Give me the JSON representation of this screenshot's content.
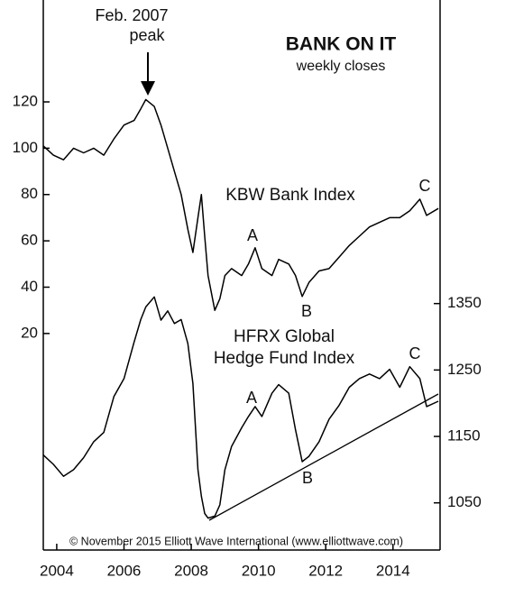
{
  "chart_data": {
    "type": "line",
    "title": "BANK ON IT",
    "subtitle": "weekly closes",
    "annotations": [
      "Feb. 2007",
      "peak",
      "A",
      "B",
      "C",
      "A",
      "B",
      "C",
      "© November 2015 Elliott Wave International (www.elliottwave.com)"
    ],
    "x": [
      2004.1,
      2004.4,
      2004.7,
      2005.0,
      2005.3,
      2005.6,
      2005.9,
      2006.2,
      2006.5,
      2006.8,
      2007.0,
      2007.15,
      2007.4,
      2007.6,
      2007.8,
      2008.0,
      2008.2,
      2008.4,
      2008.55,
      2008.7,
      2008.8,
      2008.9,
      2009.0,
      2009.2,
      2009.35,
      2009.5,
      2009.7,
      2010.0,
      2010.2,
      2010.4,
      2010.6,
      2010.9,
      2011.1,
      2011.4,
      2011.6,
      2011.8,
      2012.0,
      2012.3,
      2012.6,
      2012.9,
      2013.2,
      2013.5,
      2013.8,
      2014.1,
      2014.4,
      2014.7,
      2015.0,
      2015.3,
      2015.5,
      2015.85
    ],
    "series": [
      {
        "name": "KBW Bank Index",
        "color": "#000000",
        "values": [
          101,
          97,
          95,
          100,
          98,
          100,
          97,
          104,
          110,
          112,
          117,
          121,
          118,
          110,
          100,
          90,
          80,
          65,
          55,
          70,
          80,
          62,
          45,
          30,
          35,
          45,
          48,
          45,
          50,
          57,
          48,
          45,
          52,
          50,
          45,
          36,
          42,
          47,
          48,
          53,
          58,
          62,
          66,
          68,
          70,
          70,
          73,
          78,
          71,
          74
        ]
      },
      {
        "name": "HFRX Global Hedge Fund Index",
        "color": "#000000",
        "axis": "y2",
        "values": [
          1122,
          1108,
          1090,
          1100,
          1118,
          1142,
          1156,
          1210,
          1237,
          1292,
          1326,
          1345,
          1360,
          1325,
          1339,
          1320,
          1326,
          1290,
          1230,
          1100,
          1060,
          1034,
          1027,
          1030,
          1047,
          1100,
          1135,
          1163,
          1180,
          1195,
          1180,
          1215,
          1228,
          1215,
          1160,
          1112,
          1120,
          1142,
          1176,
          1197,
          1224,
          1237,
          1244,
          1237,
          1251,
          1224,
          1255,
          1237,
          1195,
          1203
        ]
      }
    ],
    "xlim": [
      2004.1,
      2015.9
    ],
    "xticks": [
      {
        "value": 2004.5,
        "label": "2004"
      },
      {
        "value": 2006.5,
        "label": "2006"
      },
      {
        "value": 2008.5,
        "label": "2008"
      },
      {
        "value": 2010.5,
        "label": "2010"
      },
      {
        "value": 2012.5,
        "label": "2012"
      },
      {
        "value": 2014.5,
        "label": "2014"
      }
    ],
    "ylim": [
      -73.5,
      164
    ],
    "yticks": [
      20,
      40,
      60,
      80,
      100,
      120
    ],
    "y2lim": [
      979,
      1807
    ],
    "y2ticks": [
      1050,
      1150,
      1250,
      1350
    ]
  }
}
